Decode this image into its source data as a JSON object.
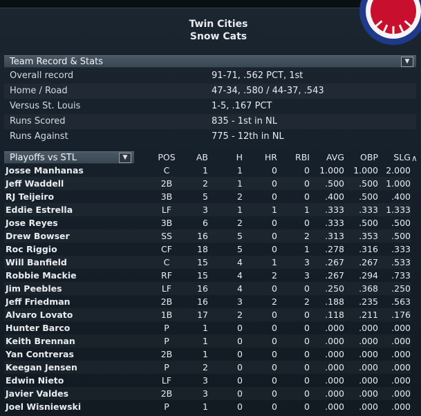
{
  "team": {
    "city": "Twin Cities",
    "name": "Snow Cats"
  },
  "record_section": {
    "header": "Team Record & Stats",
    "dropdown_icon": "chevron-down-icon",
    "rows": [
      {
        "label": "Overall record",
        "value": "91-71, .562 PCT, 1st"
      },
      {
        "label": "Home / Road",
        "value": "47-34, .580 / 44-37, .543"
      },
      {
        "label": "Versus St. Louis",
        "value": "1-5, .167 PCT"
      },
      {
        "label": "Runs Scored",
        "value": "835 - 1st  in NL"
      },
      {
        "label": "Runs Against",
        "value": "775 - 12th  in NL"
      }
    ]
  },
  "playoffs": {
    "selector_label": "Playoffs vs STL",
    "sort_icon": "chevron-up-icon",
    "columns": [
      "POS",
      "AB",
      "H",
      "HR",
      "RBI",
      "AVG",
      "OBP",
      "SLG"
    ],
    "players": [
      {
        "name": "Josse Manhanas",
        "pos": "C",
        "ab": "1",
        "h": "1",
        "hr": "0",
        "rbi": "0",
        "avg": "1.000",
        "obp": "1.000",
        "slg": "2.000"
      },
      {
        "name": "Jeff Waddell",
        "pos": "2B",
        "ab": "2",
        "h": "1",
        "hr": "0",
        "rbi": "0",
        "avg": ".500",
        "obp": ".500",
        "slg": "1.000"
      },
      {
        "name": "RJ Teijeiro",
        "pos": "3B",
        "ab": "5",
        "h": "2",
        "hr": "0",
        "rbi": "0",
        "avg": ".400",
        "obp": ".500",
        "slg": ".400"
      },
      {
        "name": "Eddie Estrella",
        "pos": "LF",
        "ab": "3",
        "h": "1",
        "hr": "1",
        "rbi": "1",
        "avg": ".333",
        "obp": ".333",
        "slg": "1.333"
      },
      {
        "name": "Jose Reyes",
        "pos": "3B",
        "ab": "6",
        "h": "2",
        "hr": "0",
        "rbi": "0",
        "avg": ".333",
        "obp": ".500",
        "slg": ".500"
      },
      {
        "name": "Drew Bowser",
        "pos": "SS",
        "ab": "16",
        "h": "5",
        "hr": "0",
        "rbi": "2",
        "avg": ".313",
        "obp": ".353",
        "slg": ".500"
      },
      {
        "name": "Roc Riggio",
        "pos": "CF",
        "ab": "18",
        "h": "5",
        "hr": "0",
        "rbi": "1",
        "avg": ".278",
        "obp": ".316",
        "slg": ".333"
      },
      {
        "name": "Will Banfield",
        "pos": "C",
        "ab": "15",
        "h": "4",
        "hr": "1",
        "rbi": "3",
        "avg": ".267",
        "obp": ".267",
        "slg": ".533"
      },
      {
        "name": "Robbie Mackie",
        "pos": "RF",
        "ab": "15",
        "h": "4",
        "hr": "2",
        "rbi": "3",
        "avg": ".267",
        "obp": ".294",
        "slg": ".733"
      },
      {
        "name": "Jim Peebles",
        "pos": "LF",
        "ab": "16",
        "h": "4",
        "hr": "0",
        "rbi": "0",
        "avg": ".250",
        "obp": ".368",
        "slg": ".250"
      },
      {
        "name": "Jeff Friedman",
        "pos": "2B",
        "ab": "16",
        "h": "3",
        "hr": "2",
        "rbi": "2",
        "avg": ".188",
        "obp": ".235",
        "slg": ".563"
      },
      {
        "name": "Alvaro Lovato",
        "pos": "1B",
        "ab": "17",
        "h": "2",
        "hr": "0",
        "rbi": "0",
        "avg": ".118",
        "obp": ".211",
        "slg": ".176"
      },
      {
        "name": "Hunter Barco",
        "pos": "P",
        "ab": "1",
        "h": "0",
        "hr": "0",
        "rbi": "0",
        "avg": ".000",
        "obp": ".000",
        "slg": ".000"
      },
      {
        "name": "Keith Brennan",
        "pos": "P",
        "ab": "1",
        "h": "0",
        "hr": "0",
        "rbi": "0",
        "avg": ".000",
        "obp": ".000",
        "slg": ".000"
      },
      {
        "name": "Yan Contreras",
        "pos": "2B",
        "ab": "1",
        "h": "0",
        "hr": "0",
        "rbi": "0",
        "avg": ".000",
        "obp": ".000",
        "slg": ".000"
      },
      {
        "name": "Keegan Jensen",
        "pos": "P",
        "ab": "2",
        "h": "0",
        "hr": "0",
        "rbi": "0",
        "avg": ".000",
        "obp": ".000",
        "slg": ".000"
      },
      {
        "name": "Edwin Nieto",
        "pos": "LF",
        "ab": "3",
        "h": "0",
        "hr": "0",
        "rbi": "0",
        "avg": ".000",
        "obp": ".000",
        "slg": ".000"
      },
      {
        "name": "Javier Valdes",
        "pos": "2B",
        "ab": "3",
        "h": "0",
        "hr": "0",
        "rbi": "0",
        "avg": ".000",
        "obp": ".000",
        "slg": ".000"
      },
      {
        "name": "Joel Wisniewski",
        "pos": "P",
        "ab": "1",
        "h": "0",
        "hr": "0",
        "rbi": "0",
        "avg": ".000",
        "obp": ".000",
        "slg": ".000"
      }
    ]
  },
  "colors": {
    "bunting_red": "#c8102e",
    "bunting_blue": "#1f3a8a",
    "bunting_white": "#f4f4f4"
  }
}
